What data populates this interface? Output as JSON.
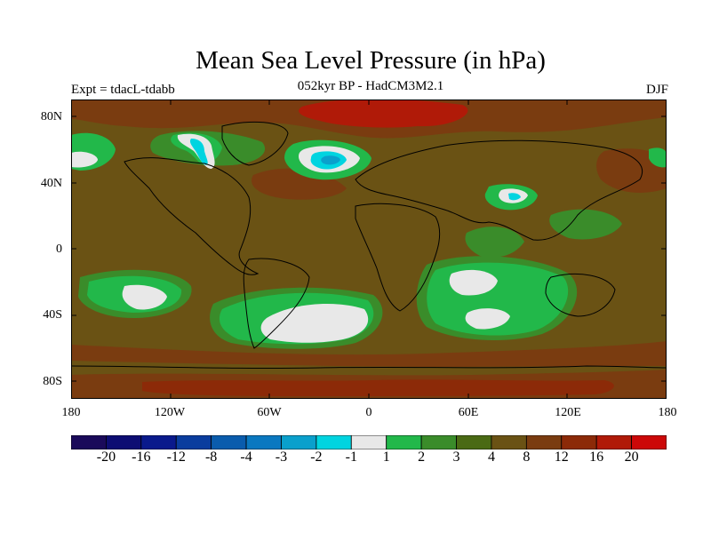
{
  "title": "Mean Sea Level Pressure (in hPa)",
  "subtitle": "052kyr BP - HadCM3M2.1",
  "experiment": "Expt = tdacL-tdabb",
  "season": "DJF",
  "lat_ticks": [
    "80N",
    "40N",
    "0",
    "40S",
    "80S"
  ],
  "lon_ticks": [
    "180",
    "120W",
    "60W",
    "0",
    "60E",
    "120E",
    "180"
  ],
  "colorbar": {
    "colors": [
      "#1a0a5a",
      "#0d0d73",
      "#0a1a8c",
      "#0a3d9e",
      "#0a5cad",
      "#0a78c0",
      "#0aa0cc",
      "#00d4e0",
      "#e8e8e8",
      "#22b84a",
      "#3a8c2a",
      "#4a6a14",
      "#6a5214",
      "#7a3c10",
      "#8c2a08",
      "#b01a08",
      "#cc0808"
    ],
    "labels": [
      "-20",
      "-16",
      "-12",
      "-8",
      "-4",
      "-3",
      "-2",
      "-1",
      "1",
      "2",
      "3",
      "4",
      "8",
      "12",
      "16",
      "20"
    ]
  }
}
